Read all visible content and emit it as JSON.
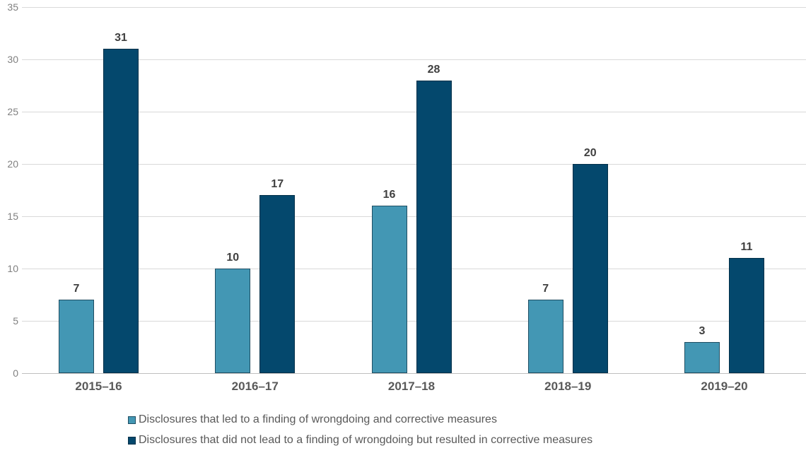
{
  "chart_data": {
    "type": "bar",
    "title": "",
    "xlabel": "",
    "ylabel": "",
    "categories": [
      "2015–16",
      "2016–17",
      "2017–18",
      "2018–19",
      "2019–20"
    ],
    "series": [
      {
        "name": "Disclosures that led to a finding of wrongdoing and corrective measures",
        "values": [
          7,
          10,
          16,
          7,
          3
        ],
        "fill": "#4397B4",
        "stroke": "#1F4E63"
      },
      {
        "name": "Disclosures that did not lead to a finding of wrongdoing but resulted in corrective measures",
        "values": [
          31,
          17,
          28,
          20,
          11
        ],
        "fill": "#04486D",
        "stroke": "#033049"
      }
    ],
    "ylim": [
      0,
      35
    ],
    "yticks": [
      0,
      5,
      10,
      15,
      20,
      25,
      30,
      35
    ],
    "grid": true,
    "data_labels": true,
    "legend_position": "bottom-left"
  },
  "colors": {
    "background": "#FFFFFF",
    "gridline": "#D9D9D9",
    "axis_line": "#BFBFBF",
    "tick_label": "#808080",
    "category_label": "#595959",
    "data_label": "#404040",
    "legend_text": "#595959"
  }
}
